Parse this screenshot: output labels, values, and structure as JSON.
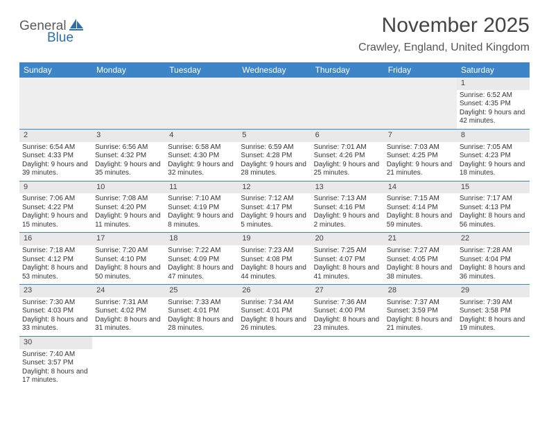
{
  "brand": {
    "part1": "General",
    "part2": "Blue"
  },
  "title": "November 2025",
  "location": "Crawley, England, United Kingdom",
  "colors": {
    "header_bg": "#3d85c6",
    "header_fg": "#ffffff",
    "daynum_bg": "#e9e9e9",
    "rule": "#3d85c6",
    "brand_gray": "#5a5a5a",
    "brand_blue": "#2f6fa8"
  },
  "daysOfWeek": [
    "Sunday",
    "Monday",
    "Tuesday",
    "Wednesday",
    "Thursday",
    "Friday",
    "Saturday"
  ],
  "weeks": [
    [
      null,
      null,
      null,
      null,
      null,
      null,
      {
        "n": "1",
        "sr": "6:52 AM",
        "ss": "4:35 PM",
        "dl": "9 hours and 42 minutes."
      }
    ],
    [
      {
        "n": "2",
        "sr": "6:54 AM",
        "ss": "4:33 PM",
        "dl": "9 hours and 39 minutes."
      },
      {
        "n": "3",
        "sr": "6:56 AM",
        "ss": "4:32 PM",
        "dl": "9 hours and 35 minutes."
      },
      {
        "n": "4",
        "sr": "6:58 AM",
        "ss": "4:30 PM",
        "dl": "9 hours and 32 minutes."
      },
      {
        "n": "5",
        "sr": "6:59 AM",
        "ss": "4:28 PM",
        "dl": "9 hours and 28 minutes."
      },
      {
        "n": "6",
        "sr": "7:01 AM",
        "ss": "4:26 PM",
        "dl": "9 hours and 25 minutes."
      },
      {
        "n": "7",
        "sr": "7:03 AM",
        "ss": "4:25 PM",
        "dl": "9 hours and 21 minutes."
      },
      {
        "n": "8",
        "sr": "7:05 AM",
        "ss": "4:23 PM",
        "dl": "9 hours and 18 minutes."
      }
    ],
    [
      {
        "n": "9",
        "sr": "7:06 AM",
        "ss": "4:22 PM",
        "dl": "9 hours and 15 minutes."
      },
      {
        "n": "10",
        "sr": "7:08 AM",
        "ss": "4:20 PM",
        "dl": "9 hours and 11 minutes."
      },
      {
        "n": "11",
        "sr": "7:10 AM",
        "ss": "4:19 PM",
        "dl": "9 hours and 8 minutes."
      },
      {
        "n": "12",
        "sr": "7:12 AM",
        "ss": "4:17 PM",
        "dl": "9 hours and 5 minutes."
      },
      {
        "n": "13",
        "sr": "7:13 AM",
        "ss": "4:16 PM",
        "dl": "9 hours and 2 minutes."
      },
      {
        "n": "14",
        "sr": "7:15 AM",
        "ss": "4:14 PM",
        "dl": "8 hours and 59 minutes."
      },
      {
        "n": "15",
        "sr": "7:17 AM",
        "ss": "4:13 PM",
        "dl": "8 hours and 56 minutes."
      }
    ],
    [
      {
        "n": "16",
        "sr": "7:18 AM",
        "ss": "4:12 PM",
        "dl": "8 hours and 53 minutes."
      },
      {
        "n": "17",
        "sr": "7:20 AM",
        "ss": "4:10 PM",
        "dl": "8 hours and 50 minutes."
      },
      {
        "n": "18",
        "sr": "7:22 AM",
        "ss": "4:09 PM",
        "dl": "8 hours and 47 minutes."
      },
      {
        "n": "19",
        "sr": "7:23 AM",
        "ss": "4:08 PM",
        "dl": "8 hours and 44 minutes."
      },
      {
        "n": "20",
        "sr": "7:25 AM",
        "ss": "4:07 PM",
        "dl": "8 hours and 41 minutes."
      },
      {
        "n": "21",
        "sr": "7:27 AM",
        "ss": "4:05 PM",
        "dl": "8 hours and 38 minutes."
      },
      {
        "n": "22",
        "sr": "7:28 AM",
        "ss": "4:04 PM",
        "dl": "8 hours and 36 minutes."
      }
    ],
    [
      {
        "n": "23",
        "sr": "7:30 AM",
        "ss": "4:03 PM",
        "dl": "8 hours and 33 minutes."
      },
      {
        "n": "24",
        "sr": "7:31 AM",
        "ss": "4:02 PM",
        "dl": "8 hours and 31 minutes."
      },
      {
        "n": "25",
        "sr": "7:33 AM",
        "ss": "4:01 PM",
        "dl": "8 hours and 28 minutes."
      },
      {
        "n": "26",
        "sr": "7:34 AM",
        "ss": "4:01 PM",
        "dl": "8 hours and 26 minutes."
      },
      {
        "n": "27",
        "sr": "7:36 AM",
        "ss": "4:00 PM",
        "dl": "8 hours and 23 minutes."
      },
      {
        "n": "28",
        "sr": "7:37 AM",
        "ss": "3:59 PM",
        "dl": "8 hours and 21 minutes."
      },
      {
        "n": "29",
        "sr": "7:39 AM",
        "ss": "3:58 PM",
        "dl": "8 hours and 19 minutes."
      }
    ],
    [
      {
        "n": "30",
        "sr": "7:40 AM",
        "ss": "3:57 PM",
        "dl": "8 hours and 17 minutes."
      },
      null,
      null,
      null,
      null,
      null,
      null
    ]
  ],
  "labels": {
    "sunrise": "Sunrise:",
    "sunset": "Sunset:",
    "daylight": "Daylight:"
  }
}
